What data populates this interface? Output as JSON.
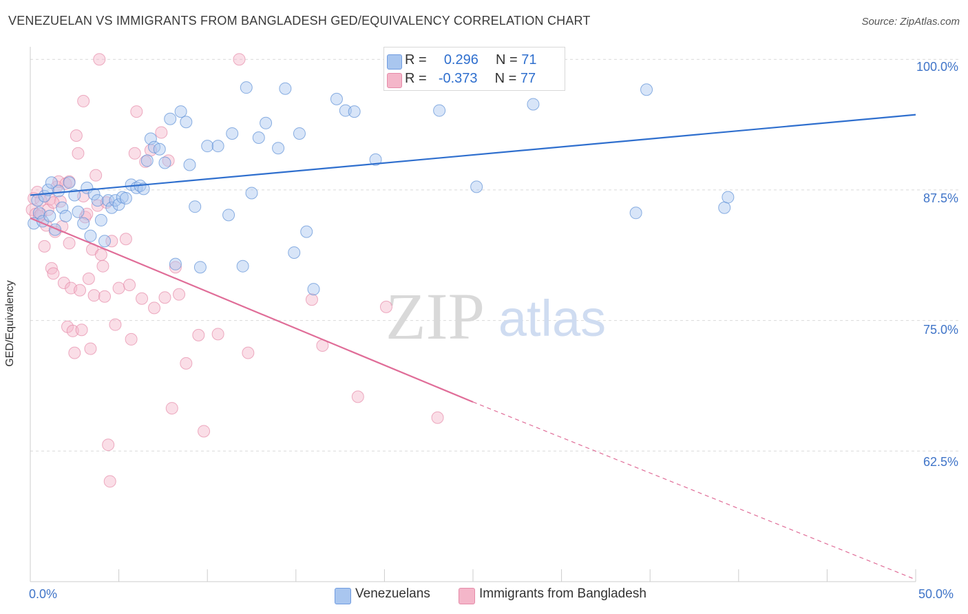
{
  "header": {
    "title": "VENEZUELAN VS IMMIGRANTS FROM BANGLADESH GED/EQUIVALENCY CORRELATION CHART",
    "source": "Source: ZipAtlas.com"
  },
  "watermark": {
    "zip": "ZIP",
    "atlas": "atlas"
  },
  "legend_top": {
    "rows": [
      {
        "r_label": "R =",
        "r_value": "0.296",
        "n_label": "N =",
        "n_value": "71",
        "color": "#a9c6ef"
      },
      {
        "r_label": "R =",
        "r_value": "-0.373",
        "n_label": "N =",
        "n_value": "77",
        "color": "#f4b6c9"
      }
    ]
  },
  "legend_bottom": {
    "items": [
      {
        "label": "Venezuelans",
        "color": "#a9c6ef"
      },
      {
        "label": "Immigrants from Bangladesh",
        "color": "#f4b6c9"
      }
    ]
  },
  "axes": {
    "ylabel": "GED/Equivalency",
    "x_min_label": "0.0%",
    "x_max_label": "50.0%",
    "y_ticks": [
      "100.0%",
      "87.5%",
      "75.0%",
      "62.5%"
    ]
  },
  "colors": {
    "blue_point": "#a9c6ef",
    "blue_stroke": "#5b8fd6",
    "blue_line": "#2f6fce",
    "pink_point": "#f4b6c9",
    "pink_stroke": "#e58aa8",
    "pink_line": "#e06d98",
    "grid": "#d9d9d9"
  },
  "chart_data": {
    "type": "scatter",
    "title": "VENEZUELAN VS IMMIGRANTS FROM BANGLADESH GED/EQUIVALENCY CORRELATION CHART",
    "xlabel": "",
    "ylabel": "GED/Equivalency",
    "xlim": [
      0,
      50
    ],
    "ylim": [
      50,
      101.2
    ],
    "y_ticks": [
      62.5,
      75,
      87.5,
      100
    ],
    "grid": true,
    "legend_placement": "bottom",
    "series": [
      {
        "name": "Venezuelans",
        "r": 0.296,
        "n": 71,
        "trend": [
          [
            0,
            87.0
          ],
          [
            50,
            94.7
          ]
        ],
        "points": [
          [
            0.2,
            84.3
          ],
          [
            0.4,
            86.5
          ],
          [
            0.5,
            85.3
          ],
          [
            0.7,
            84.5
          ],
          [
            0.8,
            86.9
          ],
          [
            1.0,
            87.5
          ],
          [
            1.1,
            85.0
          ],
          [
            1.2,
            88.2
          ],
          [
            1.4,
            83.7
          ],
          [
            1.6,
            87.4
          ],
          [
            1.8,
            85.8
          ],
          [
            2.0,
            85.0
          ],
          [
            2.2,
            88.2
          ],
          [
            2.5,
            87.0
          ],
          [
            2.7,
            85.4
          ],
          [
            3.0,
            84.3
          ],
          [
            3.2,
            87.7
          ],
          [
            3.4,
            83.1
          ],
          [
            3.6,
            87.1
          ],
          [
            3.8,
            86.5
          ],
          [
            4.0,
            84.6
          ],
          [
            4.2,
            82.6
          ],
          [
            4.4,
            86.5
          ],
          [
            4.6,
            85.8
          ],
          [
            4.8,
            86.5
          ],
          [
            5.0,
            86.1
          ],
          [
            5.2,
            86.8
          ],
          [
            5.4,
            86.7
          ],
          [
            5.7,
            88.0
          ],
          [
            6.0,
            87.7
          ],
          [
            6.2,
            87.9
          ],
          [
            6.4,
            87.6
          ],
          [
            6.6,
            90.3
          ],
          [
            6.8,
            92.4
          ],
          [
            7.0,
            91.6
          ],
          [
            7.3,
            91.4
          ],
          [
            7.6,
            90.1
          ],
          [
            7.9,
            94.3
          ],
          [
            8.2,
            80.4
          ],
          [
            8.5,
            95.0
          ],
          [
            8.8,
            94.0
          ],
          [
            9.0,
            89.9
          ],
          [
            9.3,
            85.9
          ],
          [
            9.6,
            80.1
          ],
          [
            10.0,
            91.7
          ],
          [
            10.6,
            91.7
          ],
          [
            11.2,
            85.1
          ],
          [
            11.4,
            92.9
          ],
          [
            12.0,
            80.2
          ],
          [
            12.2,
            97.3
          ],
          [
            12.5,
            87.2
          ],
          [
            12.9,
            92.5
          ],
          [
            13.3,
            93.9
          ],
          [
            14.0,
            91.5
          ],
          [
            14.4,
            97.2
          ],
          [
            14.9,
            81.5
          ],
          [
            15.2,
            92.9
          ],
          [
            15.6,
            83.5
          ],
          [
            16.0,
            78.0
          ],
          [
            17.3,
            96.2
          ],
          [
            17.8,
            95.1
          ],
          [
            18.3,
            95.0
          ],
          [
            19.5,
            90.4
          ],
          [
            23.1,
            95.1
          ],
          [
            25.2,
            87.8
          ],
          [
            25.6,
            100.0
          ],
          [
            28.4,
            95.7
          ],
          [
            34.2,
            85.3
          ],
          [
            34.8,
            97.1
          ],
          [
            39.2,
            85.8
          ],
          [
            39.4,
            86.8
          ]
        ]
      },
      {
        "name": "Immigrants from Bangladesh",
        "r": -0.373,
        "n": 77,
        "trend": [
          [
            0,
            84.8
          ],
          [
            25,
            67.2
          ]
        ],
        "trend_dashed": [
          [
            25,
            67.2
          ],
          [
            50,
            50.2
          ]
        ],
        "points": [
          [
            0.1,
            85.6
          ],
          [
            0.2,
            86.7
          ],
          [
            0.3,
            85.2
          ],
          [
            0.4,
            87.3
          ],
          [
            0.5,
            85.0
          ],
          [
            0.6,
            85.2
          ],
          [
            0.8,
            82.1
          ],
          [
            0.9,
            84.1
          ],
          [
            1.0,
            85.6
          ],
          [
            1.1,
            86.6
          ],
          [
            1.2,
            80.0
          ],
          [
            1.3,
            79.5
          ],
          [
            1.4,
            83.5
          ],
          [
            1.5,
            87.8
          ],
          [
            1.6,
            88.3
          ],
          [
            1.7,
            86.4
          ],
          [
            1.8,
            84.0
          ],
          [
            1.9,
            78.6
          ],
          [
            2.0,
            88.1
          ],
          [
            2.1,
            74.4
          ],
          [
            2.2,
            82.4
          ],
          [
            2.3,
            78.1
          ],
          [
            2.4,
            74.0
          ],
          [
            2.5,
            71.9
          ],
          [
            2.6,
            92.7
          ],
          [
            2.7,
            91.0
          ],
          [
            2.8,
            77.9
          ],
          [
            2.9,
            74.1
          ],
          [
            3.0,
            96.0
          ],
          [
            3.1,
            84.9
          ],
          [
            3.2,
            85.2
          ],
          [
            3.3,
            79.0
          ],
          [
            3.4,
            72.3
          ],
          [
            3.5,
            81.8
          ],
          [
            3.6,
            77.4
          ],
          [
            3.7,
            88.9
          ],
          [
            3.8,
            86.0
          ],
          [
            3.9,
            100.0
          ],
          [
            4.0,
            81.3
          ],
          [
            4.1,
            80.2
          ],
          [
            4.2,
            77.3
          ],
          [
            4.3,
            86.3
          ],
          [
            4.4,
            63.1
          ],
          [
            4.5,
            59.6
          ],
          [
            4.6,
            82.6
          ],
          [
            4.8,
            74.6
          ],
          [
            5.0,
            78.1
          ],
          [
            5.4,
            82.8
          ],
          [
            5.6,
            78.4
          ],
          [
            5.7,
            73.2
          ],
          [
            5.9,
            91.0
          ],
          [
            6.0,
            95.0
          ],
          [
            6.3,
            77.1
          ],
          [
            6.5,
            90.2
          ],
          [
            6.8,
            91.3
          ],
          [
            7.0,
            76.2
          ],
          [
            7.4,
            93.0
          ],
          [
            7.6,
            77.2
          ],
          [
            7.8,
            90.3
          ],
          [
            8.0,
            66.6
          ],
          [
            8.2,
            80.1
          ],
          [
            8.4,
            77.5
          ],
          [
            8.8,
            70.9
          ],
          [
            9.5,
            73.6
          ],
          [
            9.8,
            64.4
          ],
          [
            10.6,
            73.7
          ],
          [
            11.8,
            100.0
          ],
          [
            12.3,
            71.9
          ],
          [
            15.9,
            77.0
          ],
          [
            16.5,
            72.6
          ],
          [
            18.5,
            67.7
          ],
          [
            20.1,
            76.3
          ],
          [
            23.0,
            65.7
          ],
          [
            1.3,
            86.3
          ],
          [
            0.6,
            86.5
          ],
          [
            2.2,
            88.3
          ],
          [
            3.0,
            86.9
          ]
        ]
      }
    ]
  }
}
